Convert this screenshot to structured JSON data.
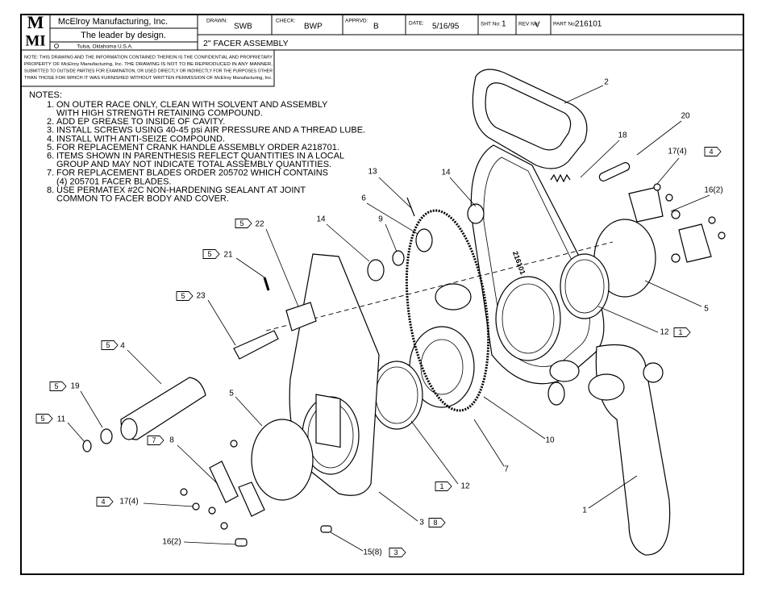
{
  "title_block": {
    "logo_top": "M",
    "logo_bottom": "MI",
    "company": "McElroy Manufacturing, Inc.",
    "tagline": "The leader by design.",
    "location": "Tulsa, Oklahoma U.S.A.",
    "drawn_label": "DRAWN:",
    "drawn": "SWB",
    "check_label": "CHECK:",
    "check": "BWP",
    "apprvd_label": "APPRVD:",
    "apprvd": "B",
    "date_label": "DATE:",
    "date": "5/16/95",
    "sht_label": "SHT No:",
    "sht": "1",
    "rev_label": "REV No:",
    "rev": "V",
    "part_label": "PART No:",
    "part": "216101",
    "title": "2\" FACER ASSEMBLY"
  },
  "notice": [
    "NOTE: THIS DRAWING AND THE INFORMATION CONTAINED THEREIN IS THE CONFIDENTIAL AND PROPRIETARY",
    "PROPERTY OF McElroy Manufacturing, Inc. THE DRAWING IS NOT TO BE REPRODUCED IN ANY MANNER,",
    "SUBMITTED TO OUTSIDE PARTIES FOR EXAMINATION, OR USED DIRECTLY OR INDIRECTLY FOR THE PURPOSES OTHER",
    "THAN THOSE FOR WHICH IT WAS FURNISHED WITHOUT WRITTEN PERMISSION OF McElroy Manufacturing, Inc."
  ],
  "notes": {
    "heading": "NOTES:",
    "items": [
      {
        "number": "1.",
        "lines": [
          "ON OUTER RACE ONLY, CLEAN WITH SOLVENT AND ASSEMBLY",
          "WITH HIGH STRENGTH RETAINING COMPOUND."
        ]
      },
      {
        "number": "2.",
        "lines": [
          "ADD EP GREASE TO INSIDE OF CAVITY."
        ]
      },
      {
        "number": "3.",
        "lines": [
          "INSTALL SCREWS USING 40-45 psi AIR PRESSURE AND A THREAD LUBE."
        ]
      },
      {
        "number": "4.",
        "lines": [
          "INSTALL WITH ANTI-SEIZE COMPOUND."
        ]
      },
      {
        "number": "5.",
        "lines": [
          "FOR REPLACEMENT CRANK HANDLE ASSEMBLY ORDER A218701."
        ]
      },
      {
        "number": "6.",
        "lines": [
          "ITEMS SHOWN IN PARENTHESIS REFLECT QUANTITIES IN A LOCAL",
          "GROUP AND MAY NOT INDICATE TOTAL ASSEMBLY QUANTITIES."
        ]
      },
      {
        "number": "7.",
        "lines": [
          "FOR REPLACEMENT BLADES ORDER 205702 WHICH CONTAINS",
          "(4) 205701 FACER BLADES."
        ]
      },
      {
        "number": "8.",
        "lines": [
          "USE PERMATEX #2C NON-HARDENING SEALANT AT JOINT",
          "COMMON TO FACER BODY AND COVER."
        ]
      }
    ]
  },
  "body_stamp": "216101",
  "callouts": [
    {
      "number": "2"
    },
    {
      "number": "20"
    },
    {
      "number": "18"
    },
    {
      "number": "17(4)",
      "flag": "4"
    },
    {
      "number": "16(2)"
    },
    {
      "number": "13"
    },
    {
      "number": "14"
    },
    {
      "number": "6"
    },
    {
      "number": "9"
    },
    {
      "number": "14"
    },
    {
      "number": "22",
      "flag": "5"
    },
    {
      "number": "21",
      "flag": "5"
    },
    {
      "number": "23",
      "flag": "5"
    },
    {
      "number": "4",
      "flag": "5"
    },
    {
      "number": "19",
      "flag": "5"
    },
    {
      "number": "11",
      "flag": "5"
    },
    {
      "number": "5"
    },
    {
      "number": "8",
      "flag": "7"
    },
    {
      "number": "17(4)",
      "flag": "4"
    },
    {
      "number": "16(2)"
    },
    {
      "number": "5"
    },
    {
      "number": "12",
      "flag": "1"
    },
    {
      "number": "10"
    },
    {
      "number": "7"
    },
    {
      "number": "12",
      "flag": "1"
    },
    {
      "number": "3",
      "flag": "8"
    },
    {
      "number": "15(8)",
      "flag": "3"
    },
    {
      "number": "1"
    }
  ]
}
